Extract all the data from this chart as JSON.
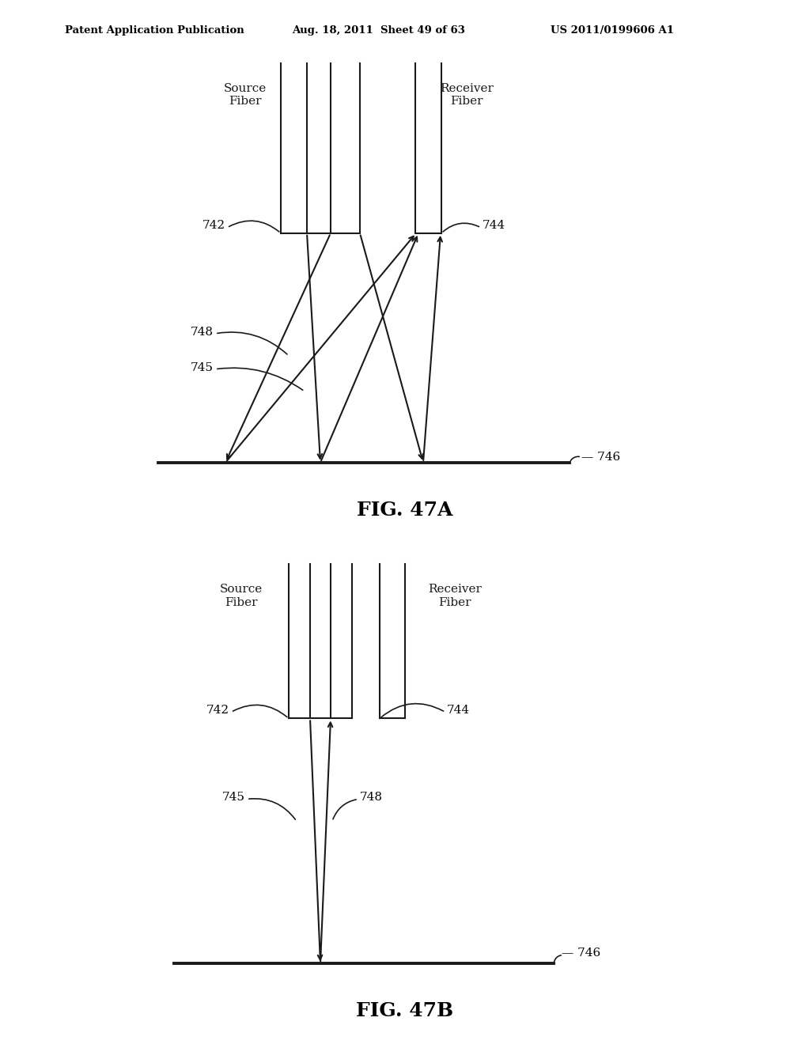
{
  "header_left": "Patent Application Publication",
  "header_mid": "Aug. 18, 2011  Sheet 49 of 63",
  "header_right": "US 2011/0199606 A1",
  "fig_a_label": "FIG. 47A",
  "fig_b_label": "FIG. 47B",
  "background_color": "#ffffff",
  "line_color": "#1a1a1a",
  "text_color": "#1a1a1a",
  "header_font_size": 9.5,
  "label_font_size": 11,
  "fig_label_font_size": 18
}
